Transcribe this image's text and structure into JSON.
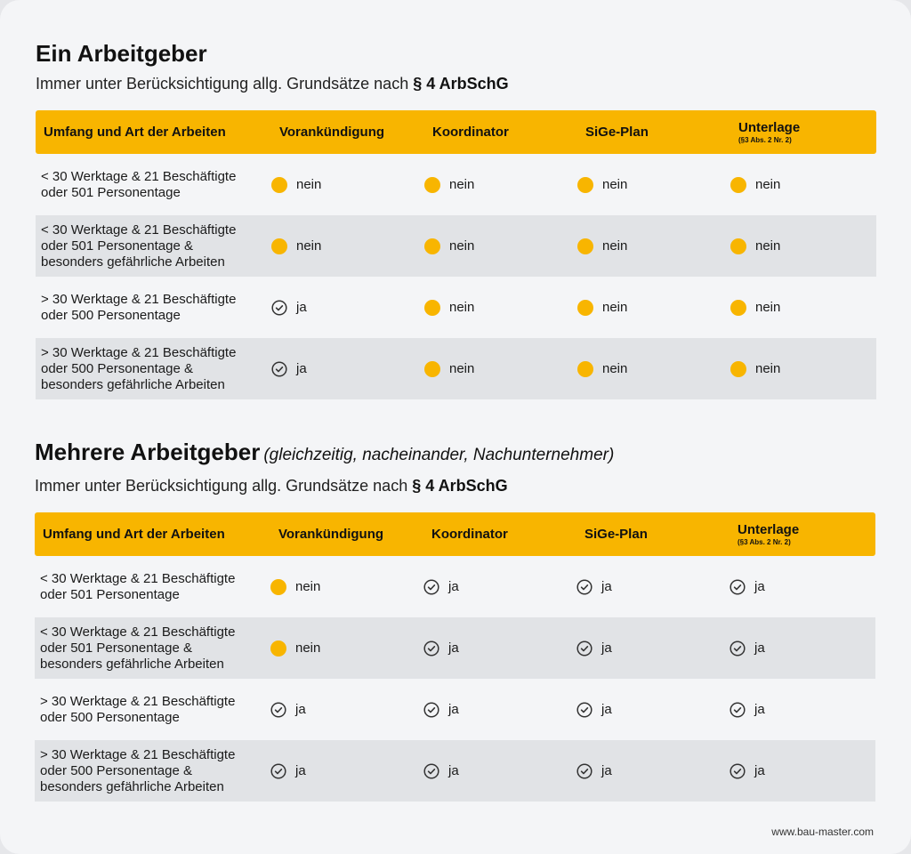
{
  "section1": {
    "title": "Ein Arbeitgeber",
    "subtitle_prefix": "Immer unter Berücksichtigung allg. Grundsätze nach",
    "subtitle_bold": "§ 4 ArbSchG",
    "headers": [
      "Umfang und Art der Arbeiten",
      "Vorankündigung",
      "Koordinator",
      "SiGe-Plan",
      "Unterlage"
    ],
    "header_note": "(§3 Abs. 2 Nr. 2)",
    "rows": [
      {
        "desc": [
          "< 30 Werktage & 21 Beschäftigte",
          "oder 501 Personentage"
        ],
        "values": [
          "nein",
          "nein",
          "nein",
          "nein"
        ]
      },
      {
        "desc": [
          "< 30 Werktage & 21 Beschäftigte",
          "oder 501 Personentage &",
          "besonders gefährliche Arbeiten"
        ],
        "values": [
          "nein",
          "nein",
          "nein",
          "nein"
        ]
      },
      {
        "desc": [
          "> 30 Werktage & 21 Beschäftigte",
          "oder 500 Personentage"
        ],
        "values": [
          "ja",
          "nein",
          "nein",
          "nein"
        ]
      },
      {
        "desc": [
          "> 30 Werktage & 21 Beschäftigte",
          "oder 500 Personentage &",
          "besonders gefährliche Arbeiten"
        ],
        "values": [
          "ja",
          "nein",
          "nein",
          "nein"
        ]
      }
    ]
  },
  "section2": {
    "title": "Mehrere Arbeitgeber",
    "title_note": "(gleichzeitig, nacheinander, Nachunternehmer)",
    "subtitle_prefix": "Immer unter Berücksichtigung allg. Grundsätze nach",
    "subtitle_bold": "§ 4 ArbSchG",
    "headers": [
      "Umfang und Art der Arbeiten",
      "Vorankündigung",
      "Koordinator",
      "SiGe-Plan",
      "Unterlage"
    ],
    "header_note": "(§3 Abs. 2 Nr. 2)",
    "rows": [
      {
        "desc": [
          "< 30 Werktage & 21 Beschäftigte",
          "oder 501 Personentage"
        ],
        "values": [
          "nein",
          "ja",
          "ja",
          "ja"
        ]
      },
      {
        "desc": [
          "< 30 Werktage & 21 Beschäftigte",
          "oder 501 Personentage &",
          "besonders gefährliche Arbeiten"
        ],
        "values": [
          "nein",
          "ja",
          "ja",
          "ja"
        ]
      },
      {
        "desc": [
          "> 30 Werktage & 21 Beschäftigte",
          "oder 500 Personentage"
        ],
        "values": [
          "ja",
          "ja",
          "ja",
          "ja"
        ]
      },
      {
        "desc": [
          "> 30 Werktage & 21 Beschäftigte",
          "oder 500 Personentage &",
          "besonders gefährliche Arbeiten"
        ],
        "values": [
          "ja",
          "ja",
          "ja",
          "ja"
        ]
      }
    ]
  },
  "footer": {
    "url": "www.bau-master.com"
  },
  "colors": {
    "accent": "#f8b500",
    "row_alt": "#e1e3e6",
    "background": "#f4f5f7"
  },
  "icons": {
    "nein": "yellow-dot-icon",
    "ja": "check-circle-icon"
  }
}
